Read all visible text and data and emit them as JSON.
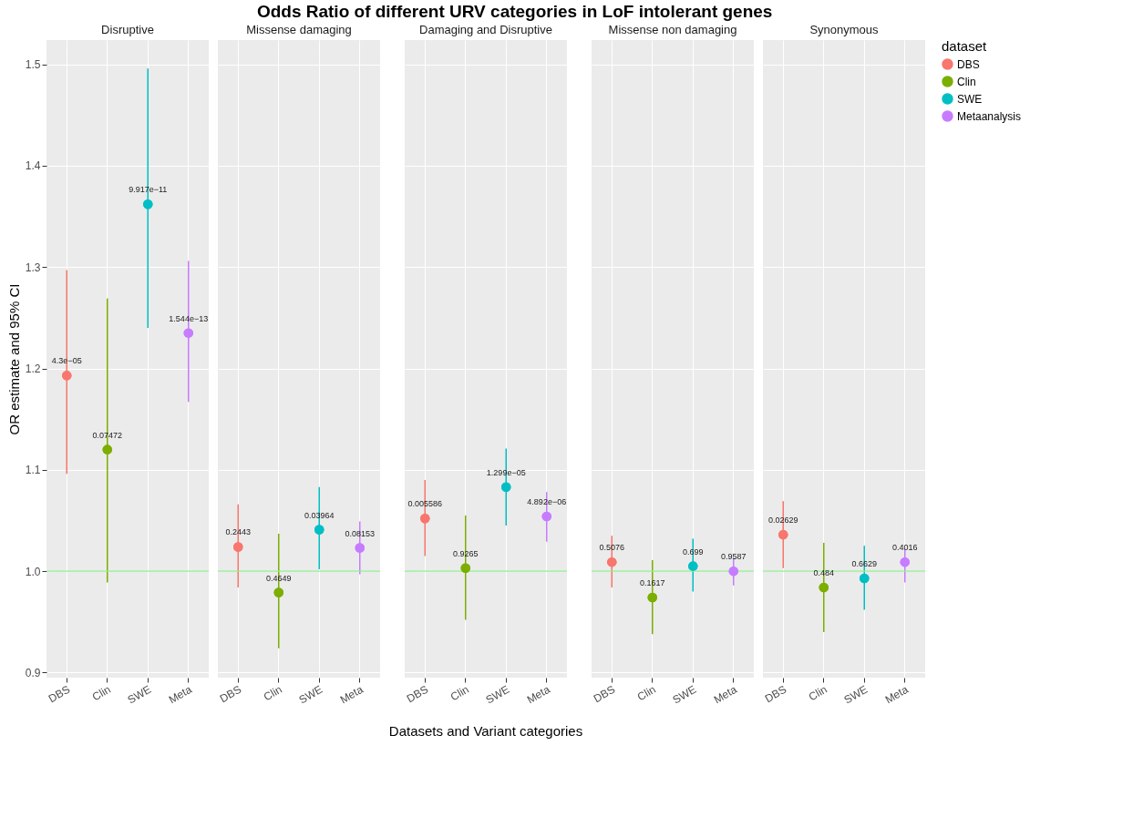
{
  "chart_data": [
    {
      "type": "scatter",
      "title": "Disruptive",
      "ylabel": "OR estimate and 95% CI",
      "categories": [
        "DBS",
        "Clin",
        "SWE",
        "Meta"
      ],
      "ylim": [
        0.895,
        1.524
      ],
      "yticks": [
        0.9,
        {
          "value": 1,
          "label": "1.0"
        },
        1.1,
        1.2,
        1.3,
        1.4,
        1.5
      ],
      "grid": true,
      "marker": "circle",
      "ref_lines": [
        {
          "axis": "y",
          "value": 1.0,
          "color": "#90ee90"
        }
      ],
      "annotations": [
        {
          "text": "4.3e−05",
          "x": "DBS",
          "y": 1.193
        },
        {
          "text": "0.07472",
          "x": "Clin",
          "y": 1.12
        },
        {
          "text": "9.917e−11",
          "x": "SWE",
          "y": 1.362
        },
        {
          "text": "1.544e−13",
          "x": "Meta",
          "y": 1.235
        }
      ],
      "series": [
        {
          "color": "#f8766d",
          "x": [
            "DBS"
          ],
          "values": [
            1.193
          ],
          "errors": [
            [
              1.096,
              1.297
            ]
          ]
        },
        {
          "color": "#7cae00",
          "x": [
            "Clin"
          ],
          "values": [
            1.12
          ],
          "errors": [
            [
              0.989,
              1.269
            ]
          ]
        },
        {
          "color": "#00bfc4",
          "x": [
            "SWE"
          ],
          "values": [
            1.362
          ],
          "errors": [
            [
              1.24,
              1.496
            ]
          ]
        },
        {
          "color": "#c77cff",
          "x": [
            "Meta"
          ],
          "values": [
            1.235
          ],
          "errors": [
            [
              1.167,
              1.306
            ]
          ]
        }
      ]
    },
    {
      "type": "scatter",
      "title": "Missense damaging",
      "categories": [
        "DBS",
        "Clin",
        "SWE",
        "Meta"
      ],
      "ylim": [
        0.895,
        1.524
      ],
      "yticks": [
        0.9,
        1.0,
        1.1,
        1.2,
        1.3,
        1.4,
        1.5
      ],
      "grid": true,
      "marker": "circle",
      "tick_labels": "x",
      "ref_lines": [
        {
          "axis": "y",
          "value": 1.0,
          "color": "#90ee90"
        }
      ],
      "annotations": [
        {
          "text": "0.2443",
          "x": "DBS",
          "y": 1.024
        },
        {
          "text": "0.4649",
          "x": "Clin",
          "y": 0.979
        },
        {
          "text": "0.03964",
          "x": "SWE",
          "y": 1.041
        },
        {
          "text": "0.08153",
          "x": "Meta",
          "y": 1.023
        }
      ],
      "series": [
        {
          "color": "#f8766d",
          "x": [
            "DBS"
          ],
          "values": [
            1.024
          ],
          "errors": [
            [
              0.984,
              1.066
            ]
          ]
        },
        {
          "color": "#7cae00",
          "x": [
            "Clin"
          ],
          "values": [
            0.979
          ],
          "errors": [
            [
              0.924,
              1.037
            ]
          ]
        },
        {
          "color": "#00bfc4",
          "x": [
            "SWE"
          ],
          "values": [
            1.041
          ],
          "errors": [
            [
              1.002,
              1.083
            ]
          ]
        },
        {
          "color": "#c77cff",
          "x": [
            "Meta"
          ],
          "values": [
            1.023
          ],
          "errors": [
            [
              0.997,
              1.049
            ]
          ]
        }
      ]
    },
    {
      "type": "scatter",
      "title": "Damaging and Disruptive",
      "xlabel": "Datasets and Variant categories",
      "categories": [
        "DBS",
        "Clin",
        "SWE",
        "Meta"
      ],
      "ylim": [
        0.895,
        1.524
      ],
      "yticks": [
        0.9,
        1.0,
        1.1,
        1.2,
        1.3,
        1.4,
        1.5
      ],
      "grid": true,
      "marker": "circle",
      "tick_labels": "x",
      "ref_lines": [
        {
          "axis": "y",
          "value": 1.0,
          "color": "#90ee90"
        }
      ],
      "annotations": [
        "Odds Ratio of different URV categories in LoF intolerant genes",
        {
          "text": "0.005586",
          "x": "DBS",
          "y": 1.052
        },
        {
          "text": "0.9265",
          "x": "Clin",
          "y": 1.003
        },
        {
          "text": "1.299e−05",
          "x": "SWE",
          "y": 1.083
        },
        {
          "text": "4.892e−06",
          "x": "Meta",
          "y": 1.054
        }
      ],
      "series": [
        {
          "color": "#f8766d",
          "x": [
            "DBS"
          ],
          "values": [
            1.052
          ],
          "errors": [
            [
              1.015,
              1.09
            ]
          ]
        },
        {
          "color": "#7cae00",
          "x": [
            "Clin"
          ],
          "values": [
            1.003
          ],
          "errors": [
            [
              0.952,
              1.055
            ]
          ]
        },
        {
          "color": "#00bfc4",
          "x": [
            "SWE"
          ],
          "values": [
            1.083
          ],
          "errors": [
            [
              1.045,
              1.121
            ]
          ]
        },
        {
          "color": "#c77cff",
          "x": [
            "Meta"
          ],
          "values": [
            1.054
          ],
          "errors": [
            [
              1.029,
              1.078
            ]
          ]
        }
      ]
    },
    {
      "type": "scatter",
      "title": "Missense non damaging",
      "categories": [
        "DBS",
        "Clin",
        "SWE",
        "Meta"
      ],
      "ylim": [
        0.895,
        1.524
      ],
      "yticks": [
        0.9,
        1.0,
        1.1,
        1.2,
        1.3,
        1.4,
        1.5
      ],
      "grid": true,
      "marker": "circle",
      "tick_labels": "x",
      "ref_lines": [
        {
          "axis": "y",
          "value": 1.0,
          "color": "#90ee90"
        }
      ],
      "annotations": [
        {
          "text": "0.5076",
          "x": "DBS",
          "y": 1.009
        },
        {
          "text": "0.1617",
          "x": "Clin",
          "y": 0.974
        },
        {
          "text": "0.699",
          "x": "SWE",
          "y": 1.005
        },
        {
          "text": "0.9587",
          "x": "Meta",
          "y": 1.0
        }
      ],
      "series": [
        {
          "color": "#f8766d",
          "x": [
            "DBS"
          ],
          "values": [
            1.009
          ],
          "errors": [
            [
              0.984,
              1.035
            ]
          ]
        },
        {
          "color": "#7cae00",
          "x": [
            "Clin"
          ],
          "values": [
            0.974
          ],
          "errors": [
            [
              0.938,
              1.011
            ]
          ]
        },
        {
          "color": "#00bfc4",
          "x": [
            "SWE"
          ],
          "values": [
            1.005
          ],
          "errors": [
            [
              0.98,
              1.032
            ]
          ]
        },
        {
          "color": "#c77cff",
          "x": [
            "Meta"
          ],
          "values": [
            1.0
          ],
          "errors": [
            [
              0.986,
              1.013
            ]
          ]
        }
      ]
    },
    {
      "type": "scatter",
      "title": "Synonymous",
      "categories": [
        "DBS",
        "Clin",
        "SWE",
        "Meta"
      ],
      "ylim": [
        0.895,
        1.524
      ],
      "yticks": [
        0.9,
        1.0,
        1.1,
        1.2,
        1.3,
        1.4,
        1.5
      ],
      "grid": true,
      "marker": "circle",
      "tick_labels": "x",
      "legend": "right",
      "legend_title": "dataset",
      "ref_lines": [
        {
          "axis": "y",
          "value": 1.0,
          "color": "#90ee90"
        }
      ],
      "annotations": [
        {
          "text": "0.02629",
          "x": "DBS",
          "y": 1.036
        },
        {
          "text": "0.484",
          "x": "Clin",
          "y": 0.984
        },
        {
          "text": "0.6629",
          "x": "SWE",
          "y": 0.993
        },
        {
          "text": "0.4016",
          "x": "Meta",
          "y": 1.009
        }
      ],
      "series": [
        {
          "name": "DBS",
          "color": "#f8766d",
          "x": [
            "DBS"
          ],
          "values": [
            1.036
          ],
          "errors": [
            [
              1.003,
              1.069
            ]
          ]
        },
        {
          "name": "Clin",
          "color": "#7cae00",
          "x": [
            "Clin"
          ],
          "values": [
            0.984
          ],
          "errors": [
            [
              0.94,
              1.028
            ]
          ]
        },
        {
          "name": "SWE",
          "color": "#00bfc4",
          "x": [
            "SWE"
          ],
          "values": [
            0.993
          ],
          "errors": [
            [
              0.962,
              1.025
            ]
          ]
        },
        {
          "name": "Metaanalysis",
          "color": "#c77cff",
          "x": [
            "Meta"
          ],
          "values": [
            1.009
          ],
          "errors": [
            [
              0.989,
              1.022
            ]
          ]
        }
      ]
    }
  ]
}
